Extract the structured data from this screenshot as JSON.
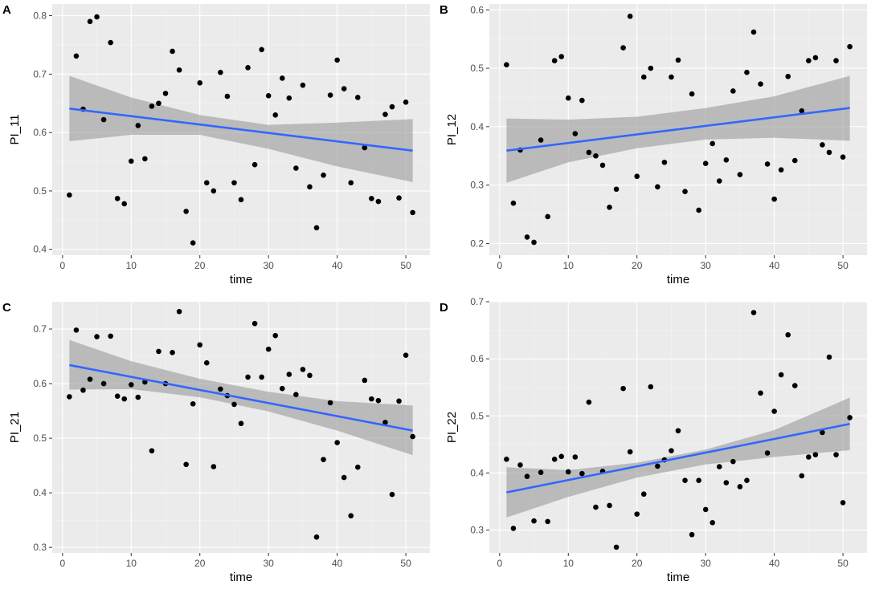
{
  "figure": {
    "background": "#ffffff"
  },
  "style": {
    "panel_bg": "#ebebeb",
    "grid_major": "#ffffff",
    "grid_minor": "#f4f4f4",
    "point": "#000000",
    "fit_line": "#3366ff",
    "ribbon": "#999999",
    "ribbon_opacity": 0.6,
    "tick": "#333333"
  },
  "chart_data": [
    {
      "label": "A",
      "type": "scatter",
      "xlabel": "time",
      "ylabel": "PI_11",
      "xlim": [
        -1.5,
        53.5
      ],
      "ylim": [
        0.39,
        0.82
      ],
      "xticks": [
        0,
        10,
        20,
        30,
        40,
        50
      ],
      "yticks": [
        0.4,
        0.5,
        0.6,
        0.7,
        0.8
      ],
      "ytick_labels": [
        "0.4",
        "0.5",
        "0.6",
        "0.7",
        "0.8"
      ],
      "x": [
        1,
        2,
        3,
        4,
        5,
        6,
        7,
        8,
        9,
        10,
        11,
        12,
        13,
        14,
        15,
        16,
        17,
        18,
        19,
        20,
        21,
        22,
        23,
        24,
        25,
        26,
        27,
        28,
        29,
        30,
        31,
        32,
        33,
        34,
        35,
        36,
        37,
        38,
        39,
        40,
        41,
        42,
        43,
        44,
        45,
        46,
        47,
        48,
        49,
        50,
        51
      ],
      "y": [
        0.493,
        0.731,
        0.64,
        0.79,
        0.798,
        0.622,
        0.754,
        0.487,
        0.478,
        0.551,
        0.612,
        0.555,
        0.645,
        0.65,
        0.667,
        0.739,
        0.707,
        0.465,
        0.411,
        0.685,
        0.514,
        0.5,
        0.703,
        0.662,
        0.514,
        0.485,
        0.711,
        0.545,
        0.742,
        0.663,
        0.63,
        0.693,
        0.659,
        0.539,
        0.681,
        0.507,
        0.437,
        0.527,
        0.664,
        0.724,
        0.675,
        0.514,
        0.66,
        0.574,
        0.487,
        0.482,
        0.631,
        0.644,
        0.488,
        0.652,
        0.463
      ],
      "fit": {
        "x": [
          1,
          51
        ],
        "y": [
          0.641,
          0.569
        ]
      },
      "band": {
        "x": [
          1,
          10,
          20,
          30,
          40,
          51
        ],
        "lower": [
          0.585,
          0.596,
          0.596,
          0.572,
          0.542,
          0.515
        ],
        "upper": [
          0.697,
          0.66,
          0.63,
          0.613,
          0.617,
          0.623
        ]
      }
    },
    {
      "label": "B",
      "type": "scatter",
      "xlabel": "time",
      "ylabel": "PI_12",
      "xlim": [
        -1.5,
        53.5
      ],
      "ylim": [
        0.18,
        0.61
      ],
      "xticks": [
        0,
        10,
        20,
        30,
        40,
        50
      ],
      "yticks": [
        0.2,
        0.3,
        0.4,
        0.5,
        0.6
      ],
      "ytick_labels": [
        "0.2",
        "0.3",
        "0.4",
        "0.5",
        "0.6"
      ],
      "x": [
        1,
        2,
        3,
        4,
        5,
        6,
        7,
        8,
        9,
        10,
        11,
        12,
        13,
        14,
        15,
        16,
        17,
        18,
        19,
        20,
        21,
        22,
        23,
        24,
        25,
        26,
        27,
        28,
        29,
        30,
        31,
        32,
        33,
        34,
        35,
        36,
        37,
        38,
        39,
        40,
        41,
        42,
        43,
        44,
        45,
        46,
        47,
        48,
        49,
        50,
        51
      ],
      "y": [
        0.506,
        0.269,
        0.36,
        0.211,
        0.202,
        0.377,
        0.246,
        0.513,
        0.52,
        0.449,
        0.388,
        0.445,
        0.356,
        0.35,
        0.334,
        0.262,
        0.293,
        0.535,
        0.589,
        0.315,
        0.485,
        0.5,
        0.297,
        0.339,
        0.485,
        0.514,
        0.289,
        0.456,
        0.257,
        0.337,
        0.371,
        0.307,
        0.343,
        0.461,
        0.318,
        0.493,
        0.562,
        0.473,
        0.336,
        0.276,
        0.326,
        0.486,
        0.342,
        0.427,
        0.513,
        0.518,
        0.369,
        0.356,
        0.513,
        0.348,
        0.537
      ],
      "fit": {
        "x": [
          1,
          51
        ],
        "y": [
          0.359,
          0.432
        ]
      },
      "band": {
        "x": [
          1,
          10,
          20,
          30,
          40,
          51
        ],
        "lower": [
          0.304,
          0.339,
          0.363,
          0.378,
          0.381,
          0.376
        ],
        "upper": [
          0.414,
          0.412,
          0.417,
          0.432,
          0.452,
          0.487
        ]
      }
    },
    {
      "label": "C",
      "type": "scatter",
      "xlabel": "time",
      "ylabel": "PI_21",
      "xlim": [
        -1.5,
        53.5
      ],
      "ylim": [
        0.29,
        0.75
      ],
      "xticks": [
        0,
        10,
        20,
        30,
        40,
        50
      ],
      "yticks": [
        0.3,
        0.4,
        0.5,
        0.6,
        0.7
      ],
      "ytick_labels": [
        "0.3",
        "0.4",
        "0.5",
        "0.6",
        "0.7"
      ],
      "x": [
        1,
        2,
        3,
        4,
        5,
        6,
        7,
        8,
        9,
        10,
        11,
        12,
        13,
        14,
        15,
        16,
        17,
        18,
        19,
        20,
        21,
        22,
        23,
        24,
        25,
        26,
        27,
        28,
        29,
        30,
        31,
        32,
        33,
        34,
        35,
        36,
        37,
        38,
        39,
        40,
        41,
        42,
        43,
        44,
        45,
        46,
        47,
        48,
        49,
        50,
        51
      ],
      "y": [
        0.576,
        0.698,
        0.588,
        0.608,
        0.686,
        0.6,
        0.687,
        0.577,
        0.572,
        0.598,
        0.575,
        0.603,
        0.477,
        0.659,
        0.6,
        0.657,
        0.732,
        0.452,
        0.563,
        0.671,
        0.638,
        0.448,
        0.59,
        0.578,
        0.562,
        0.527,
        0.612,
        0.71,
        0.612,
        0.663,
        0.688,
        0.591,
        0.617,
        0.58,
        0.626,
        0.615,
        0.319,
        0.461,
        0.565,
        0.492,
        0.428,
        0.358,
        0.447,
        0.606,
        0.572,
        0.569,
        0.529,
        0.397,
        0.568,
        0.652,
        0.503
      ],
      "fit": {
        "x": [
          1,
          51
        ],
        "y": [
          0.634,
          0.514
        ]
      },
      "band": {
        "x": [
          1,
          10,
          20,
          30,
          40,
          51
        ],
        "lower": [
          0.589,
          0.59,
          0.575,
          0.549,
          0.514,
          0.469
        ],
        "upper": [
          0.68,
          0.641,
          0.609,
          0.585,
          0.568,
          0.56
        ]
      }
    },
    {
      "label": "D",
      "type": "scatter",
      "xlabel": "time",
      "ylabel": "PI_22",
      "xlim": [
        -1.5,
        53.5
      ],
      "ylim": [
        0.26,
        0.7
      ],
      "xticks": [
        0,
        10,
        20,
        30,
        40,
        50
      ],
      "yticks": [
        0.3,
        0.4,
        0.5,
        0.6,
        0.7
      ],
      "ytick_labels": [
        "0.3",
        "0.4",
        "0.5",
        "0.6",
        "0.7"
      ],
      "x": [
        1,
        2,
        3,
        4,
        5,
        6,
        7,
        8,
        9,
        10,
        11,
        12,
        13,
        14,
        15,
        16,
        17,
        18,
        19,
        20,
        21,
        22,
        23,
        24,
        25,
        26,
        27,
        28,
        29,
        30,
        31,
        32,
        33,
        34,
        35,
        36,
        37,
        38,
        39,
        40,
        41,
        42,
        43,
        44,
        45,
        46,
        47,
        48,
        49,
        50,
        51
      ],
      "y": [
        0.424,
        0.303,
        0.414,
        0.394,
        0.316,
        0.401,
        0.315,
        0.424,
        0.429,
        0.402,
        0.428,
        0.399,
        0.524,
        0.34,
        0.403,
        0.343,
        0.27,
        0.548,
        0.437,
        0.328,
        0.363,
        0.551,
        0.412,
        0.423,
        0.439,
        0.474,
        0.387,
        0.292,
        0.387,
        0.336,
        0.313,
        0.411,
        0.383,
        0.42,
        0.376,
        0.387,
        0.681,
        0.54,
        0.435,
        0.508,
        0.572,
        0.642,
        0.553,
        0.395,
        0.428,
        0.432,
        0.471,
        0.603,
        0.432,
        0.348,
        0.497
      ],
      "fit": {
        "x": [
          1,
          51
        ],
        "y": [
          0.366,
          0.486
        ]
      },
      "band": {
        "x": [
          1,
          10,
          20,
          30,
          40,
          51
        ],
        "lower": [
          0.322,
          0.358,
          0.392,
          0.415,
          0.428,
          0.44
        ],
        "upper": [
          0.41,
          0.405,
          0.418,
          0.441,
          0.475,
          0.532
        ]
      }
    }
  ]
}
